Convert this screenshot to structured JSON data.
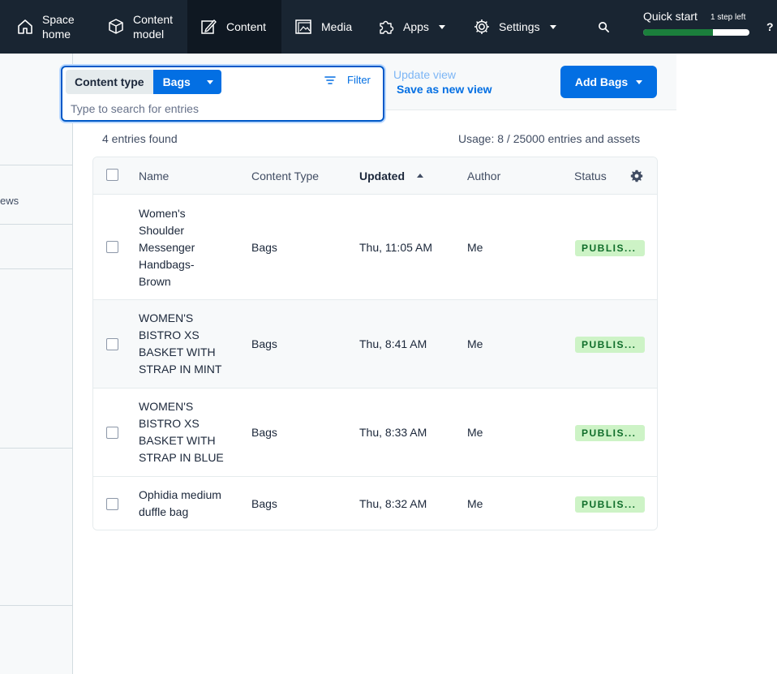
{
  "nav": {
    "space_home": [
      "Space",
      "home"
    ],
    "content_model": [
      "Content",
      "model"
    ],
    "content": "Content",
    "media": "Media",
    "apps": "Apps",
    "settings": "Settings",
    "quick_start": {
      "title": "Quick start",
      "steps_left": "1 step left",
      "progress_fraction": 0.66
    },
    "help": "?"
  },
  "sidebar": {
    "partial_text": "ews"
  },
  "search": {
    "content_type_label": "Content type",
    "content_type_value": "Bags",
    "filter_label": "Filter",
    "placeholder": "Type to search for entries"
  },
  "views": {
    "update": "Update view",
    "save_new": "Save as new view"
  },
  "add_button": "Add Bags",
  "summary": {
    "count": "4 entries found",
    "usage": "Usage: 8 / 25000 entries and assets"
  },
  "table": {
    "headers": {
      "name": "Name",
      "content_type": "Content Type",
      "updated": "Updated",
      "author": "Author",
      "status": "Status"
    },
    "rows": [
      {
        "name_lines": [
          "Women's",
          "Shoulder",
          "Messenger",
          "Handbags-",
          "Brown"
        ],
        "content_type": "Bags",
        "updated": "Thu, 11:05 AM",
        "author": "Me",
        "status": "PUBLIS..."
      },
      {
        "name_lines": [
          "WOMEN'S",
          "BISTRO XS",
          "BASKET WITH",
          "STRAP IN MINT"
        ],
        "content_type": "Bags",
        "updated": "Thu, 8:41 AM",
        "author": "Me",
        "status": "PUBLIS..."
      },
      {
        "name_lines": [
          "WOMEN'S",
          "BISTRO XS",
          "BASKET WITH",
          "STRAP IN BLUE"
        ],
        "content_type": "Bags",
        "updated": "Thu, 8:33 AM",
        "author": "Me",
        "status": "PUBLIS..."
      },
      {
        "name_lines": [
          "Ophidia medium",
          "duffle bag"
        ],
        "content_type": "Bags",
        "updated": "Thu, 8:32 AM",
        "author": "Me",
        "status": "PUBLIS..."
      }
    ]
  },
  "colors": {
    "nav_bg": "#192532",
    "primary": "#036fe3",
    "success_bg": "#cdf3c6",
    "success_text": "#0f6d2a",
    "progress": "#1b7f3c"
  }
}
